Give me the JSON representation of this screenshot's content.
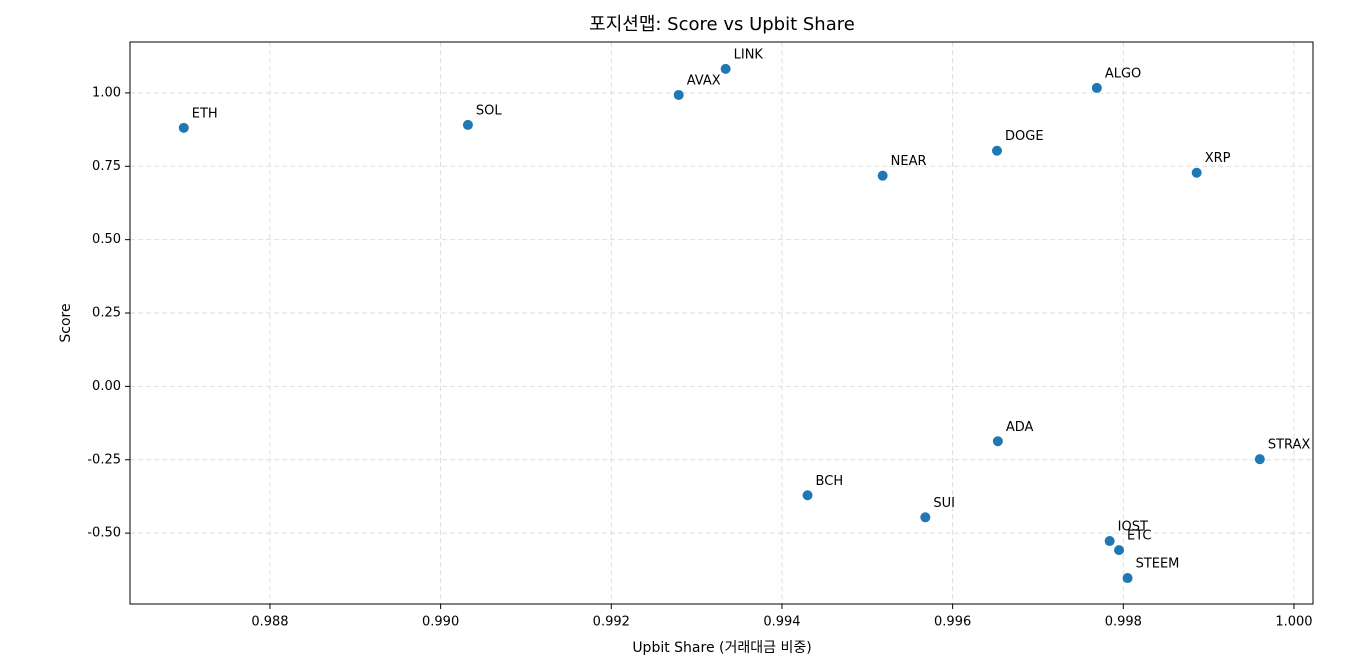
{
  "chart_data": {
    "type": "scatter",
    "title": "포지션맵: Score vs Upbit Share",
    "x_label": "Upbit Share (거래대금 비중)",
    "y_label": "Score",
    "labels": [
      "ETH",
      "SOL",
      "AVAX",
      "LINK",
      "NEAR",
      "DOGE",
      "ALGO",
      "XRP",
      "ADA",
      "STRAX",
      "BCH",
      "SUI",
      "IOST",
      "ETC",
      "STEEM"
    ],
    "x": [
      0.98699,
      0.99032,
      0.99279,
      0.99334,
      0.99518,
      0.99652,
      0.99769,
      0.99886,
      0.99653,
      0.9996,
      0.9943,
      0.99568,
      0.99784,
      0.99795,
      0.99805
    ],
    "values": [
      0.881,
      0.891,
      0.993,
      1.082,
      0.718,
      0.803,
      1.017,
      0.728,
      -0.187,
      -0.248,
      -0.371,
      -0.446,
      -0.527,
      -0.558,
      -0.653
    ],
    "color": "#1f77b4",
    "xlim": [
      0.98636,
      1.000223
    ],
    "ylim": [
      -0.7415,
      1.1735
    ],
    "xticks": [
      0.988,
      {
        "value": 0.99,
        "label": "0.990"
      },
      0.992,
      0.994,
      0.996,
      0.998,
      {
        "value": 1,
        "label": "1.000"
      }
    ],
    "yticks": [
      {
        "value": -0.5,
        "label": "-0.50"
      },
      -0.25,
      {
        "value": 0,
        "label": "0.00"
      },
      0.25,
      {
        "value": 0.5,
        "label": "0.50"
      },
      0.75,
      {
        "value": 1,
        "label": "1.00"
      }
    ],
    "grid": true
  }
}
